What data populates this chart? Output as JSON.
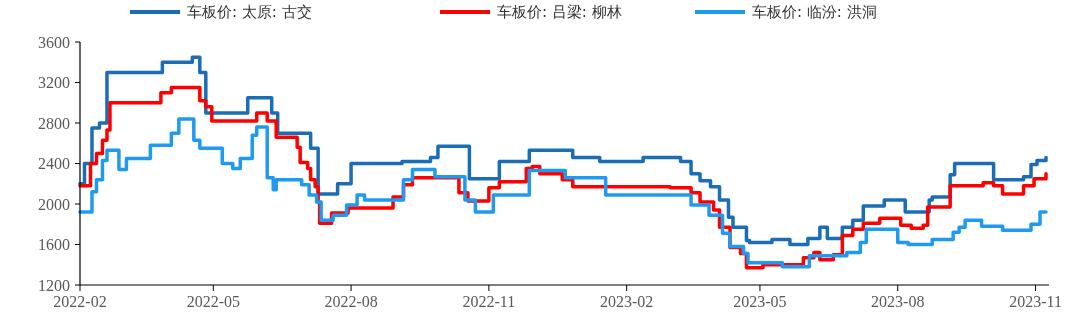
{
  "chart_data": {
    "type": "step",
    "legend": "top",
    "marker": "none",
    "line_style": "solid",
    "grid": false,
    "xlim": [
      "2022-02-01",
      "2023-11-10"
    ],
    "xticks": [
      "2022-02",
      "2022-05",
      "2022-08",
      "2022-11",
      "2023-02",
      "2023-05",
      "2023-08",
      "2023-11"
    ],
    "ylim": [
      1200,
      3600
    ],
    "yticks": [
      1200,
      1600,
      2000,
      2400,
      2800,
      3200,
      3600
    ],
    "series": [
      {
        "name": "车板价: 太原: 古交",
        "color": "#1b6db5",
        "x": [
          "2022-02-01",
          "2022-02-04",
          "2022-02-09",
          "2022-02-14",
          "2022-02-19",
          "2022-03-28",
          "2022-04-17",
          "2022-04-22",
          "2022-04-26",
          "2022-05-24",
          "2022-06-09",
          "2022-06-13",
          "2022-07-05",
          "2022-07-10",
          "2022-07-23",
          "2022-08-01",
          "2022-09-04",
          "2022-09-23",
          "2022-09-28",
          "2022-10-19",
          "2022-11-08",
          "2022-11-28",
          "2022-12-27",
          "2023-01-14",
          "2023-02-12",
          "2023-03-09",
          "2023-03-16",
          "2023-03-22",
          "2023-03-29",
          "2023-04-04",
          "2023-04-10",
          "2023-04-13",
          "2023-04-22",
          "2023-04-24",
          "2023-05-09",
          "2023-05-21",
          "2023-06-02",
          "2023-06-10",
          "2023-06-15",
          "2023-06-25",
          "2023-07-02",
          "2023-07-09",
          "2023-07-23",
          "2023-08-06",
          "2023-08-22",
          "2023-08-24",
          "2023-09-05",
          "2023-09-08",
          "2023-10-04",
          "2023-10-24",
          "2023-10-29",
          "2023-11-02",
          "2023-11-08"
        ],
        "values": [
          2200,
          2400,
          2750,
          2800,
          3300,
          3400,
          3450,
          3300,
          2900,
          3050,
          2900,
          2700,
          2550,
          2100,
          2200,
          2400,
          2420,
          2460,
          2570,
          2250,
          2420,
          2530,
          2460,
          2420,
          2460,
          2420,
          2300,
          2230,
          2170,
          2040,
          1870,
          1770,
          1640,
          1620,
          1650,
          1600,
          1660,
          1770,
          1660,
          1770,
          1840,
          1980,
          2040,
          1920,
          2040,
          2070,
          2290,
          2400,
          2240,
          2270,
          2390,
          2430,
          2460
        ]
      },
      {
        "name": "车板价: 吕梁: 柳林",
        "color": "#ff0000",
        "x": [
          "2022-02-01",
          "2022-02-08",
          "2022-02-12",
          "2022-02-16",
          "2022-02-19",
          "2022-02-21",
          "2022-03-27",
          "2022-04-03",
          "2022-04-22",
          "2022-04-26",
          "2022-04-30",
          "2022-05-30",
          "2022-06-06",
          "2022-06-12",
          "2022-06-26",
          "2022-06-28",
          "2022-07-03",
          "2022-07-05",
          "2022-07-08",
          "2022-07-10",
          "2022-07-11",
          "2022-07-19",
          "2022-07-30",
          "2022-08-29",
          "2022-09-05",
          "2022-09-11",
          "2022-10-12",
          "2022-10-18",
          "2022-11-01",
          "2022-11-08",
          "2022-11-26",
          "2022-11-30",
          "2022-12-05",
          "2022-12-20",
          "2022-12-27",
          "2023-03-02",
          "2023-03-16",
          "2023-03-22",
          "2023-03-31",
          "2023-04-04",
          "2023-04-11",
          "2023-04-18",
          "2023-04-22",
          "2023-05-03",
          "2023-05-30",
          "2023-06-06",
          "2023-06-10",
          "2023-06-19",
          "2023-06-25",
          "2023-07-02",
          "2023-07-09",
          "2023-07-20",
          "2023-08-03",
          "2023-08-10",
          "2023-08-18",
          "2023-08-21",
          "2023-09-05",
          "2023-09-27",
          "2023-10-04",
          "2023-10-10",
          "2023-10-24",
          "2023-10-31",
          "2023-11-08"
        ],
        "values": [
          2180,
          2400,
          2500,
          2630,
          2730,
          3000,
          3100,
          3150,
          3020,
          2960,
          2820,
          2900,
          2820,
          2660,
          2560,
          2410,
          2350,
          2240,
          2170,
          2020,
          1810,
          1910,
          1960,
          2070,
          2190,
          2260,
          2110,
          2030,
          2160,
          2220,
          2350,
          2370,
          2300,
          2240,
          2170,
          2160,
          2110,
          2020,
          1940,
          1770,
          1570,
          1510,
          1370,
          1400,
          1470,
          1520,
          1450,
          1500,
          1690,
          1750,
          1810,
          1860,
          1790,
          1760,
          1790,
          1970,
          2180,
          2210,
          2180,
          2100,
          2180,
          2250,
          2300
        ]
      },
      {
        "name": "车板价: 临汾: 洪洞",
        "color": "#1e9af0",
        "x": [
          "2022-02-01",
          "2022-02-09",
          "2022-02-12",
          "2022-02-16",
          "2022-02-19",
          "2022-02-27",
          "2022-03-04",
          "2022-03-20",
          "2022-04-03",
          "2022-04-08",
          "2022-04-18",
          "2022-04-22",
          "2022-05-07",
          "2022-05-14",
          "2022-05-19",
          "2022-05-27",
          "2022-05-30",
          "2022-06-06",
          "2022-06-10",
          "2022-06-12",
          "2022-06-29",
          "2022-07-04",
          "2022-07-09",
          "2022-07-12",
          "2022-07-20",
          "2022-07-29",
          "2022-08-05",
          "2022-08-10",
          "2022-09-05",
          "2022-09-11",
          "2022-09-26",
          "2022-10-16",
          "2022-10-23",
          "2022-11-04",
          "2022-11-28",
          "2022-12-22",
          "2023-01-18",
          "2023-03-16",
          "2023-03-28",
          "2023-04-06",
          "2023-04-11",
          "2023-04-20",
          "2023-04-23",
          "2023-05-16",
          "2023-06-03",
          "2023-06-28",
          "2023-07-07",
          "2023-07-11",
          "2023-08-01",
          "2023-08-08",
          "2023-08-24",
          "2023-09-07",
          "2023-09-11",
          "2023-09-15",
          "2023-09-26",
          "2023-10-10",
          "2023-10-29",
          "2023-11-04",
          "2023-11-08"
        ],
        "values": [
          1920,
          2120,
          2240,
          2430,
          2530,
          2340,
          2450,
          2580,
          2700,
          2840,
          2630,
          2550,
          2400,
          2350,
          2450,
          2680,
          2760,
          2260,
          2140,
          2240,
          2190,
          2090,
          2020,
          1840,
          1890,
          1990,
          2090,
          2040,
          2240,
          2340,
          2270,
          2040,
          1920,
          2090,
          2330,
          2260,
          2090,
          1990,
          1890,
          1710,
          1580,
          1510,
          1420,
          1380,
          1490,
          1520,
          1620,
          1750,
          1620,
          1600,
          1650,
          1720,
          1770,
          1840,
          1780,
          1740,
          1800,
          1920,
          1920
        ]
      }
    ]
  }
}
